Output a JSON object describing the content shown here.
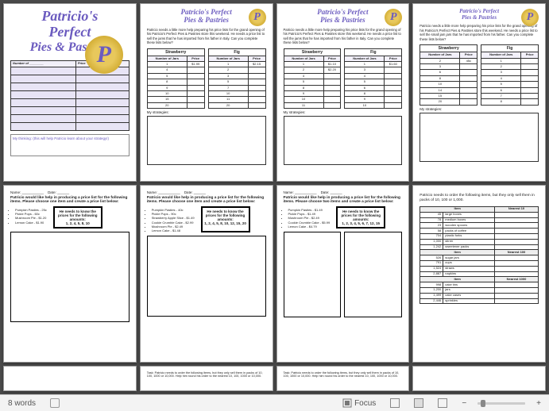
{
  "brand": {
    "line1": "Patricio's",
    "line2": "Perfect",
    "line3": "Pies & Pastries",
    "combined_a": "Patricio's Perfect",
    "combined_b": "Pies & Pastries",
    "logo_letter": "P"
  },
  "page1": {
    "form_header_left": "Number of",
    "form_header_right": "Price",
    "note": "My thinking: (this will help Patricio learn about your strategy!)",
    "row_color": "#e8e4f5"
  },
  "intro_short": "Patricio needs a little more help preparing his price lists for the grand opening of his Patricio's Perfect Pies & Pastries store this weekend. He needs a price list to sell the jams that he has imported from his father in Italy. Can you complete these lists below?",
  "intro_short_b": "Patricio needs a little more help preparing his price lists for the grand opening of his Patricio's Perfect Pies & Pastries store this weekend. He needs a price list to sell the small jam jars that he has imported from his father. Can you complete these lists below?",
  "jam_tables": {
    "col_jars": "Number of Jars",
    "col_price": "Price",
    "strawberry_label": "Strawberry",
    "fig_label": "Fig",
    "v2": {
      "straw": [
        [
          "1",
          "$1.99"
        ],
        [
          "4",
          ""
        ],
        [
          "5",
          ""
        ],
        [
          "8",
          ""
        ],
        [
          "9",
          ""
        ],
        [
          "10",
          ""
        ],
        [
          "15",
          ""
        ],
        [
          "20",
          ""
        ]
      ],
      "fig": [
        [
          "1",
          "$2.15"
        ],
        [
          "2",
          ""
        ],
        [
          "3",
          ""
        ],
        [
          "5",
          ""
        ],
        [
          "7",
          ""
        ],
        [
          "10",
          ""
        ],
        [
          "11",
          ""
        ],
        [
          "20",
          ""
        ]
      ]
    },
    "v3": {
      "straw": [
        [
          "1",
          "$1.10"
        ],
        [
          "2",
          "$2.20"
        ],
        [
          "4",
          ""
        ],
        [
          "5",
          ""
        ],
        [
          "8",
          ""
        ],
        [
          "9",
          ""
        ],
        [
          "10",
          ""
        ],
        [
          "11",
          ""
        ]
      ],
      "fig": [
        [
          "1",
          "$1.60"
        ],
        [
          "3",
          ""
        ],
        [
          "4",
          ""
        ],
        [
          "5",
          ""
        ],
        [
          "6",
          ""
        ],
        [
          "8",
          ""
        ],
        [
          "9",
          ""
        ],
        [
          "10",
          ""
        ]
      ]
    },
    "v4": {
      "straw": [
        [
          "2",
          "45c"
        ],
        [
          "3",
          ""
        ],
        [
          "6",
          ""
        ],
        [
          "8",
          ""
        ],
        [
          "10",
          ""
        ],
        [
          "14",
          ""
        ],
        [
          "15",
          ""
        ],
        [
          "20",
          ""
        ]
      ],
      "fig": [
        [
          "1",
          ""
        ],
        [
          "2",
          ""
        ],
        [
          "3",
          ""
        ],
        [
          "4",
          ""
        ],
        [
          "5",
          ""
        ],
        [
          "6",
          ""
        ],
        [
          "7",
          ""
        ],
        [
          "8",
          ""
        ]
      ]
    },
    "strategies_label": "My strategies:"
  },
  "worksheet": {
    "name_label": "Name: ___________",
    "date_label": "Date: ______",
    "prompt_one": "Patricio would like help in producing a price list for the following items. Please choose one item and create a price list below:",
    "prompt_two": "Patricio would like help in producing a price list for the following items. Please choose two items and create a price list below:",
    "items_a": [
      "Pumpkin Pasties - 25c",
      "Pickle Pops - 60c",
      "Mushroom Pie - $1.20",
      "Lemon Cake - $1.90"
    ],
    "items_b": [
      "Pumpkin Pasties - 40c",
      "Pickle Pops - 90c",
      "Strawberry Apple Slice - $1.49",
      "Cookie Crumble Cake - $2.99",
      "Mushroom Pie - $2.49",
      "Lemon Cake - $1.48"
    ],
    "items_c": [
      "Pumpkin Pasties - $1.49",
      "Pickle Pops - $1.49",
      "Mushroom Pie - $2.49",
      "Cookie Crumble Cake - $5.99",
      "Lemon Cake - $4.79"
    ],
    "callout_lead": "He needs to know the prices for the following amounts:",
    "amounts_a": "1, 2, 4, 5, 8, 10",
    "amounts_b": "1, 2, 4, 5, 8, 10, 12, 15, 20",
    "amounts_c": "1, 2, 3, 4, 5, 6, 7, 12, 15"
  },
  "rounding": {
    "intro": "Patricio needs to order the following items, but they only sell them in packs of 10, 100 or 1,000.",
    "col_item": "Item",
    "near10": "Nearest 10",
    "near100": "Nearest 100",
    "near1000": "Nearest 1000",
    "rows10": [
      [
        "45",
        "large boxes"
      ],
      [
        "78",
        "medium boxes"
      ],
      [
        "23",
        "wooden spoons"
      ],
      [
        "58",
        "packs of coffee"
      ],
      [
        "704",
        "plastic forks"
      ],
      [
        "1,000",
        "stirrer"
      ],
      [
        "1,242",
        "sweetener packs"
      ]
    ],
    "rows100": [
      [
        "526",
        "sugar jars"
      ],
      [
        "791",
        "cups"
      ],
      [
        "1,524",
        "straws"
      ],
      [
        "2,887",
        "napkins"
      ]
    ],
    "rows1000": [
      [
        "998",
        "cake tins"
      ],
      [
        "1,200",
        "jars"
      ],
      [
        "1,499",
        "cake cases"
      ],
      [
        "2,446",
        "sprinkles"
      ]
    ]
  },
  "task_row": {
    "t1": "Task: Patricio needs to order the following items, but they only sell them in packs of 10, 100, 1000 or 10,000. Help him round his order to the nearest 10, 100, 1000 or 10,000.",
    "t2": "Task: Patricio needs to order the following items, but they only sell them in packs of 10, 100, 1000 or 10,000. Help him round his order to the nearest 10, 100, 1000 or 10,000."
  },
  "statusbar": {
    "words": "8 words",
    "focus": "Focus",
    "zoom_minus": "−",
    "zoom_plus": "+"
  }
}
